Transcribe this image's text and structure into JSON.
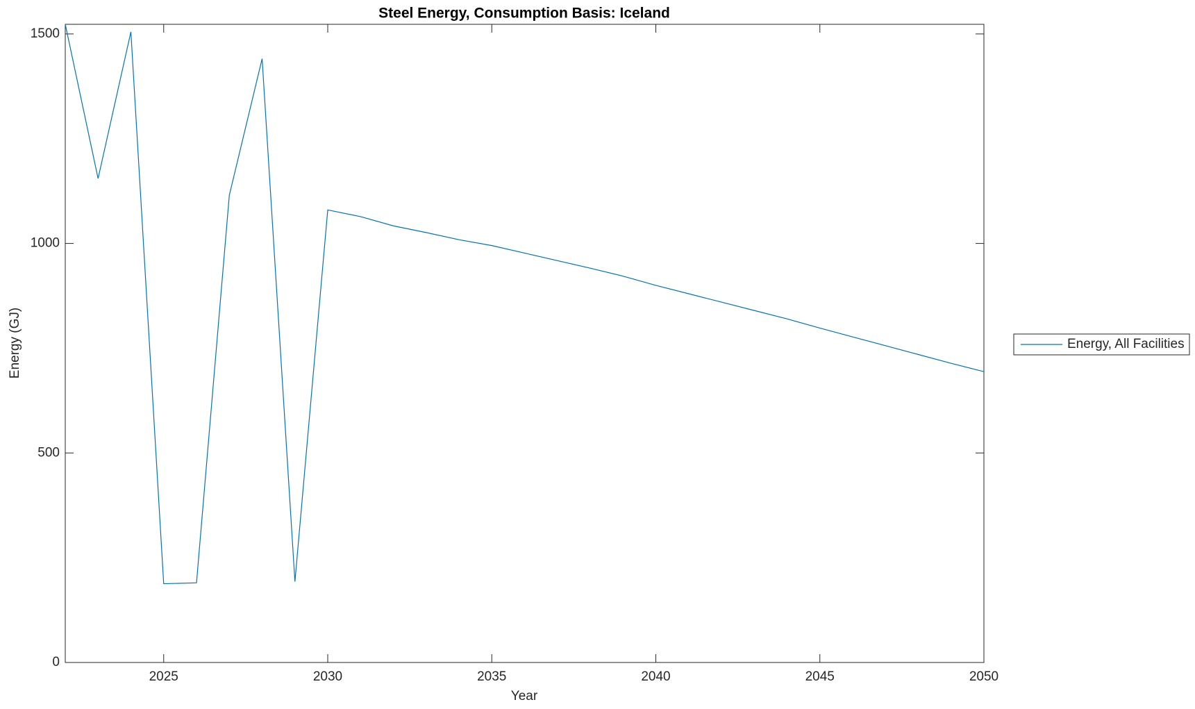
{
  "chart_data": {
    "type": "line",
    "title": "Steel Energy, Consumption Basis: Iceland",
    "x_label": "Year",
    "y_label": "Energy (GJ)",
    "x": [
      2022,
      2023,
      2024,
      2025,
      2026,
      2027,
      2028,
      2029,
      2030,
      2031,
      2032,
      2033,
      2034,
      2035,
      2036,
      2037,
      2038,
      2039,
      2040,
      2041,
      2042,
      2043,
      2044,
      2045,
      2046,
      2047,
      2048,
      2049,
      2050
    ],
    "series": [
      {
        "name": "Energy, All Facilities",
        "color": "#0072bd",
        "values": [
          1523,
          1155,
          1505,
          188,
          190,
          1115,
          1441,
          193,
          1080,
          1064,
          1042,
          1026,
          1009,
          995,
          977,
          959,
          941,
          922,
          900,
          880,
          860,
          840,
          820,
          798,
          777,
          756,
          735,
          714,
          694
        ]
      }
    ],
    "xlim": [
      2022,
      2050
    ],
    "xticks": [
      2025,
      2030,
      2035,
      2040,
      2045,
      2050
    ],
    "ylim": [
      0,
      1523
    ],
    "yticks": [
      0,
      500,
      1000,
      1500
    ],
    "legend": "outside-right"
  }
}
